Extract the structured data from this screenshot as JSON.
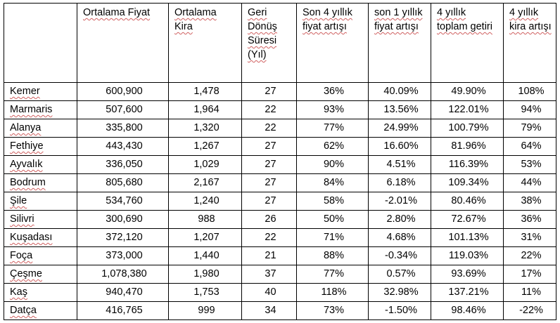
{
  "table": {
    "headers": [
      "",
      "Ortalama Fiyat",
      "Ortalama Kira",
      "Geri Dönüş Süresi (Yıl)",
      "Son 4 yıllık fiyat artışı",
      "son 1 yıllık fiyat artışı",
      "4 yıllık toplam getiri",
      "4 yıllık kira artışı"
    ],
    "rows": [
      [
        "Kemer",
        "600,900",
        "1,478",
        "27",
        "36%",
        "40.09%",
        "49.90%",
        "108%"
      ],
      [
        "Marmaris",
        "507,600",
        "1,964",
        "22",
        "93%",
        "13.56%",
        "122.01%",
        "94%"
      ],
      [
        "Alanya",
        "335,800",
        "1,320",
        "22",
        "77%",
        "24.99%",
        "100.79%",
        "79%"
      ],
      [
        "Fethiye",
        "443,430",
        "1,267",
        "27",
        "62%",
        "16.60%",
        "81.96%",
        "64%"
      ],
      [
        "Ayvalık",
        "336,050",
        "1,029",
        "27",
        "90%",
        "4.51%",
        "116.39%",
        "53%"
      ],
      [
        "Bodrum",
        "805,680",
        "2,167",
        "27",
        "84%",
        "6.18%",
        "109.34%",
        "44%"
      ],
      [
        "Şile",
        "534,760",
        "1,240",
        "27",
        "58%",
        "-2.01%",
        "80.46%",
        "38%"
      ],
      [
        "Silivri",
        "300,690",
        "988",
        "26",
        "50%",
        "2.80%",
        "72.67%",
        "36%"
      ],
      [
        "Kuşadası",
        "372,120",
        "1,207",
        "22",
        "71%",
        "4.68%",
        "101.13%",
        "31%"
      ],
      [
        "Foça",
        "373,000",
        "1,440",
        "21",
        "88%",
        "-0.34%",
        "119.03%",
        "22%"
      ],
      [
        "Çeşme",
        "1,078,380",
        "1,980",
        "37",
        "77%",
        "0.57%",
        "93.69%",
        "17%"
      ],
      [
        "Kaş",
        "940,470",
        "1,753",
        "40",
        "118%",
        "32.98%",
        "137.21%",
        "11%"
      ],
      [
        "Datça",
        "416,765",
        "999",
        "34",
        "73%",
        "-1.50%",
        "98.46%",
        "-22%"
      ]
    ]
  }
}
